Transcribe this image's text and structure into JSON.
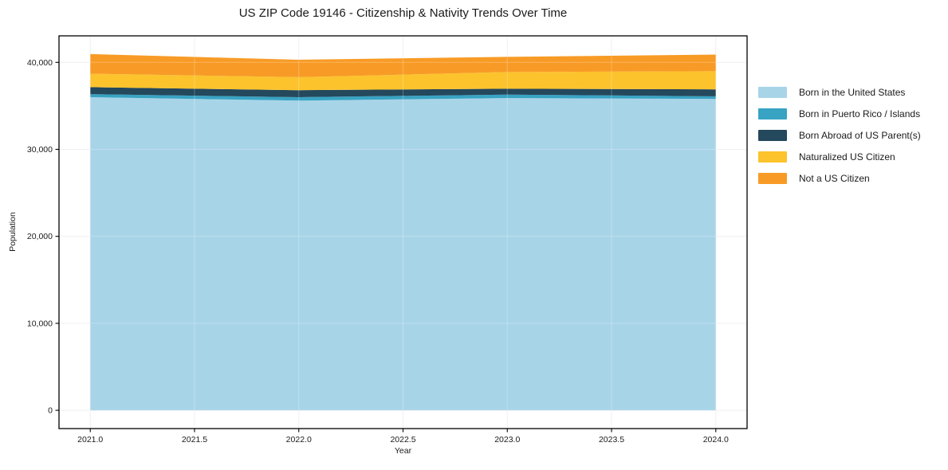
{
  "title": "US ZIP Code 19146 - Citizenship &amp; Nativity Trends Over Time",
  "title_text": "US ZIP Code 19146 - Citizenship & Nativity Trends Over Time",
  "chart_data": {
    "type": "area",
    "stacked": true,
    "title": "US ZIP Code 19146 - Citizenship & Nativity Trends Over Time",
    "xlabel": "Year",
    "ylabel": "Population",
    "x": [
      2021,
      2022,
      2023,
      2024
    ],
    "series": [
      {
        "name": "Born in the United States",
        "color": "#a8d4e8",
        "values": [
          36000,
          35600,
          35900,
          35800
        ]
      },
      {
        "name": "Born in Puerto Rico / Islands",
        "color": "#38a3c3",
        "values": [
          350,
          400,
          400,
          300
        ]
      },
      {
        "name": "Born Abroad of US Parent(s)",
        "color": "#24485c",
        "values": [
          800,
          800,
          670,
          800
        ]
      },
      {
        "name": "Naturalized US Citizen",
        "color": "#fcc32d",
        "values": [
          1550,
          1500,
          1920,
          2080
        ]
      },
      {
        "name": "Not a US Citizen",
        "color": "#f89b26",
        "values": [
          2250,
          2000,
          1740,
          1920
        ]
      }
    ],
    "totals": [
      40950,
      40300,
      40630,
      40900
    ],
    "x_ticks": [
      {
        "value": 2021.0,
        "label": "2021.0"
      },
      {
        "value": 2021.5,
        "label": "2021.5"
      },
      {
        "value": 2022.0,
        "label": "2022.0"
      },
      {
        "value": 2022.5,
        "label": "2022.5"
      },
      {
        "value": 2023.0,
        "label": "2023.0"
      },
      {
        "value": 2023.5,
        "label": "2023.5"
      },
      {
        "value": 2024.0,
        "label": "2024.0"
      }
    ],
    "y_ticks": [
      {
        "value": 0,
        "label": "0"
      },
      {
        "value": 10000,
        "label": "10,000"
      },
      {
        "value": 20000,
        "label": "20,000"
      },
      {
        "value": 30000,
        "label": "30,000"
      },
      {
        "value": 40000,
        "label": "40,000"
      }
    ],
    "xlim": [
      2020.85,
      2024.15
    ],
    "ylim": [
      -2100,
      43050
    ],
    "grid": true,
    "legend_position": "right"
  },
  "style": {
    "frame_color": "#000000",
    "grid_color_under": "#ececec",
    "grid_color_over": "#ffffff",
    "tick_label_color": "#1a1a1a",
    "background": "#ffffff"
  }
}
